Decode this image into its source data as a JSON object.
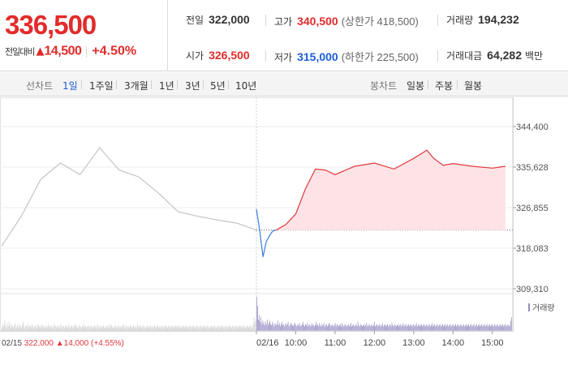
{
  "quote": {
    "price": "336,500",
    "change_label": "전일대비",
    "change_arrow": "▲",
    "change_value": "14,500",
    "change_pct": "+4.50%",
    "prev_close_label": "전일",
    "prev_close": "322,000",
    "open_label": "시가",
    "open": "326,500",
    "high_label": "고가",
    "high": "340,500",
    "upper_limit": "(상한가 418,500)",
    "low_label": "저가",
    "low": "315,000",
    "lower_limit": "(하한가 225,500)",
    "volume_label": "거래량",
    "volume": "194,232",
    "amount_label": "거래대금",
    "amount": "64,282",
    "amount_unit": "백만"
  },
  "tabs": {
    "line_label": "선차트",
    "line": [
      "1일",
      "1주일",
      "3개월",
      "1년",
      "3년",
      "5년",
      "10년"
    ],
    "active": "1일",
    "candle_label": "봉차트",
    "candle": [
      "일봉",
      "주봉",
      "월봉"
    ]
  },
  "chart_data": {
    "type": "line",
    "y_ticks": [
      "344,400",
      "335,628",
      "326,855",
      "318,083",
      "309,310"
    ],
    "ylim": [
      309310,
      344400
    ],
    "prev_close": 322000,
    "prev_day_date": "02/15",
    "prev_day_summary": {
      "close": "322,000",
      "arrow": "▲",
      "change": "14,000",
      "pct": "(+4.55%)"
    },
    "today_date": "02/16",
    "x_ticks": [
      "10:00",
      "11:00",
      "12:00",
      "13:00",
      "14:00",
      "15:00"
    ],
    "volume_legend": "거래량",
    "series": [
      {
        "x": [
          "02/15 09:00",
          "02/15 09:30",
          "02/15 10:00",
          "02/15 10:30",
          "02/15 11:00",
          "02/15 11:30",
          "02/15 12:00",
          "02/15 12:30",
          "02/15 13:00",
          "02/15 13:30",
          "02/15 14:00",
          "02/15 14:30",
          "02/15 15:00",
          "02/15 15:30"
        ],
        "values": [
          318500,
          325000,
          333000,
          336500,
          334000,
          339800,
          335000,
          333500,
          330000,
          326000,
          325000,
          324200,
          323500,
          322000
        ],
        "color": "#c4c4c4"
      },
      {
        "x": [
          "09:00",
          "09:05",
          "09:10",
          "09:15",
          "09:20",
          "09:25",
          "09:30"
        ],
        "values": [
          326500,
          322000,
          316200,
          319500,
          320800,
          321800,
          322000
        ],
        "color": "#3b7fe0"
      },
      {
        "x": [
          "09:30",
          "09:45",
          "10:00",
          "10:15",
          "10:30",
          "10:45",
          "11:00",
          "11:30",
          "12:00",
          "12:30",
          "13:00",
          "13:20",
          "13:30",
          "13:45",
          "14:00",
          "14:30",
          "15:00",
          "15:20"
        ],
        "values": [
          322000,
          323200,
          325500,
          331000,
          335200,
          335000,
          334000,
          335800,
          336500,
          335200,
          337500,
          339300,
          337600,
          336000,
          336400,
          335800,
          335400,
          335800
        ],
        "color": "#e0393e",
        "fill": "#fde3e5"
      }
    ],
    "volume": {
      "prev_day": [
        3,
        6,
        4,
        9,
        5,
        3,
        7,
        4,
        8,
        5,
        3,
        6,
        4,
        3,
        5,
        7,
        3,
        4,
        6,
        3,
        5,
        4,
        3,
        6,
        8,
        4,
        3,
        5,
        4,
        6,
        3,
        4,
        5,
        3,
        6,
        4,
        3,
        5,
        4,
        3,
        6,
        5,
        4,
        3,
        5,
        4,
        6,
        3,
        4,
        5,
        3,
        4,
        6,
        4,
        3,
        5,
        4,
        3,
        6,
        4,
        5,
        3,
        4,
        5,
        3,
        4,
        6,
        3,
        5,
        4,
        3,
        4,
        5,
        3,
        4,
        6,
        3,
        4,
        5,
        4,
        3,
        5,
        4,
        6,
        3,
        4,
        3,
        5,
        4,
        3,
        4,
        6,
        3,
        5,
        4,
        3,
        4,
        5,
        3,
        4,
        5,
        3,
        4,
        3,
        5,
        4,
        3,
        6,
        4,
        3,
        5,
        4,
        3,
        4,
        5,
        3,
        4,
        3,
        5,
        4,
        3,
        6,
        4,
        5,
        3,
        4,
        3,
        5,
        4,
        3,
        4,
        5,
        3,
        4,
        3,
        5,
        4,
        6,
        3,
        4,
        5,
        3,
        4,
        3,
        5,
        4,
        3,
        4,
        5,
        3,
        4,
        3,
        6,
        4,
        3,
        5,
        4,
        3,
        4,
        5,
        3,
        4,
        3,
        5,
        4,
        3,
        4,
        5,
        3,
        4,
        3,
        5,
        4,
        3,
        4,
        5,
        3,
        4,
        3,
        5,
        4,
        3,
        4,
        5,
        3,
        4,
        3,
        5,
        4,
        3,
        4,
        5,
        3,
        4,
        3,
        5,
        4,
        3,
        4,
        5,
        3,
        4,
        3,
        5,
        4,
        3,
        4,
        5,
        3,
        4,
        3,
        5,
        4,
        3,
        4,
        5,
        3,
        4,
        3,
        5,
        4,
        3,
        4,
        5,
        3,
        4,
        3,
        5,
        4,
        3,
        4,
        5,
        3,
        4,
        3,
        5,
        4,
        3,
        4,
        5,
        3,
        4,
        3,
        5,
        4,
        3,
        4,
        5,
        3,
        4,
        3,
        5,
        4,
        3,
        4,
        5,
        3,
        4,
        3,
        5,
        4,
        3,
        4,
        5,
        3,
        4,
        3,
        5,
        4,
        3,
        4,
        5,
        3,
        4,
        3,
        5,
        4,
        3,
        4,
        5,
        3,
        4,
        6,
        12,
        8,
        10
      ],
      "today": [
        30,
        22,
        10,
        14,
        8,
        12,
        6,
        9,
        7,
        5,
        8,
        6,
        10,
        5,
        7,
        9,
        6,
        5,
        8,
        6,
        4,
        7,
        5,
        6,
        9,
        5,
        7,
        4,
        6,
        8,
        5,
        6,
        4,
        7,
        5,
        6,
        8,
        4,
        5,
        7,
        6,
        5,
        4,
        6,
        7,
        5,
        4,
        6,
        5,
        7,
        4,
        5,
        6,
        8,
        5,
        4,
        6,
        5,
        7,
        4,
        6,
        5,
        4,
        7,
        5,
        6,
        4,
        5,
        8,
        5,
        6,
        4,
        7,
        5,
        4,
        6,
        5,
        7,
        4,
        5,
        6,
        4,
        5,
        7,
        6,
        4,
        5,
        6,
        4,
        5,
        7,
        4,
        6,
        5,
        4,
        5,
        6,
        4,
        7,
        5,
        4,
        6,
        5,
        4,
        5,
        6,
        4,
        5,
        7,
        4,
        5,
        6,
        4,
        5,
        6,
        4,
        8,
        5,
        4,
        6,
        5,
        4,
        5,
        6,
        4,
        5,
        7,
        4,
        5,
        6,
        4,
        5,
        6,
        4,
        5,
        8,
        4,
        5,
        6,
        4,
        5,
        6,
        4,
        5,
        7,
        4,
        5,
        6,
        4,
        5,
        6,
        4,
        5,
        6,
        4,
        7,
        5,
        4,
        6,
        5,
        4,
        5,
        6,
        4,
        5,
        6,
        4,
        5,
        7,
        4,
        5,
        6,
        4,
        5,
        6,
        4,
        5,
        6,
        4,
        5,
        6,
        4,
        5,
        7,
        4,
        5,
        6,
        4,
        5,
        6,
        4,
        5,
        6,
        4,
        5,
        6,
        4,
        5,
        6,
        4,
        5,
        7,
        4,
        5,
        6,
        4,
        5,
        6,
        4,
        5,
        6,
        4,
        5,
        6,
        4,
        5,
        6,
        4,
        5,
        6,
        4,
        5,
        6,
        4,
        5,
        6,
        4,
        5,
        6,
        4,
        5,
        6,
        4,
        5,
        6,
        4,
        5,
        6,
        4,
        5,
        6,
        4,
        5,
        6,
        4,
        5,
        6,
        4,
        5,
        6,
        4,
        5,
        6,
        4,
        5,
        6,
        4,
        5,
        6,
        4,
        5,
        6,
        4,
        5,
        6,
        4,
        5,
        6,
        4,
        5,
        6,
        4,
        5,
        6,
        4,
        5,
        6,
        4,
        5,
        6,
        4,
        5,
        6,
        4,
        5,
        6,
        4,
        5,
        6,
        4,
        5,
        9,
        12
      ]
    },
    "colors": {
      "prev_day": "#c4c4c4",
      "up": "#e0393e",
      "down": "#3b7fe0",
      "up_fill": "#fde3e5",
      "prev_volume": "#d2d2d2",
      "today_volume": "#9a8fc4"
    }
  }
}
